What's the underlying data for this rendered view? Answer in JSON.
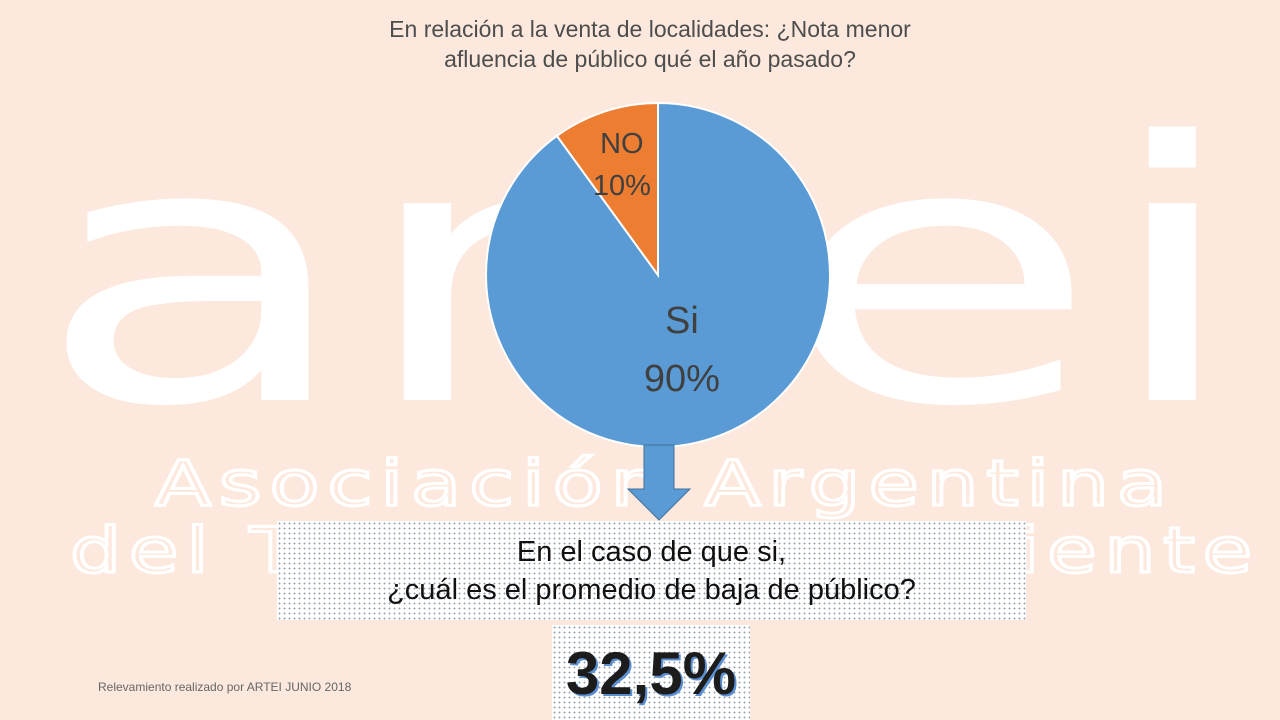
{
  "watermark": {
    "logo": "artei",
    "line1": "Asociación Argentina",
    "line2": "del Teatro Independiente"
  },
  "chart_data": {
    "type": "pie",
    "title_lines": [
      "En relación a la venta de localidades: ¿Nota menor",
      "afluencia de público qué el año pasado?"
    ],
    "slices": [
      {
        "label": "Si",
        "value": 90,
        "display": "90%",
        "color": "#5b9bd5"
      },
      {
        "label": "NO",
        "value": 10,
        "display": "10%",
        "color": "#ed7d31"
      }
    ],
    "start_angle_deg": 0,
    "direction": "clockwise"
  },
  "followup": {
    "question_lines": [
      "En el caso de que si,",
      "¿cuál es el promedio de baja de público?"
    ],
    "answer": "32,5%"
  },
  "footnote": "Relevamiento realizado por ARTEI JUNIO 2018",
  "colors": {
    "background": "#fce8dc",
    "arrow": "#5b9bd5"
  }
}
